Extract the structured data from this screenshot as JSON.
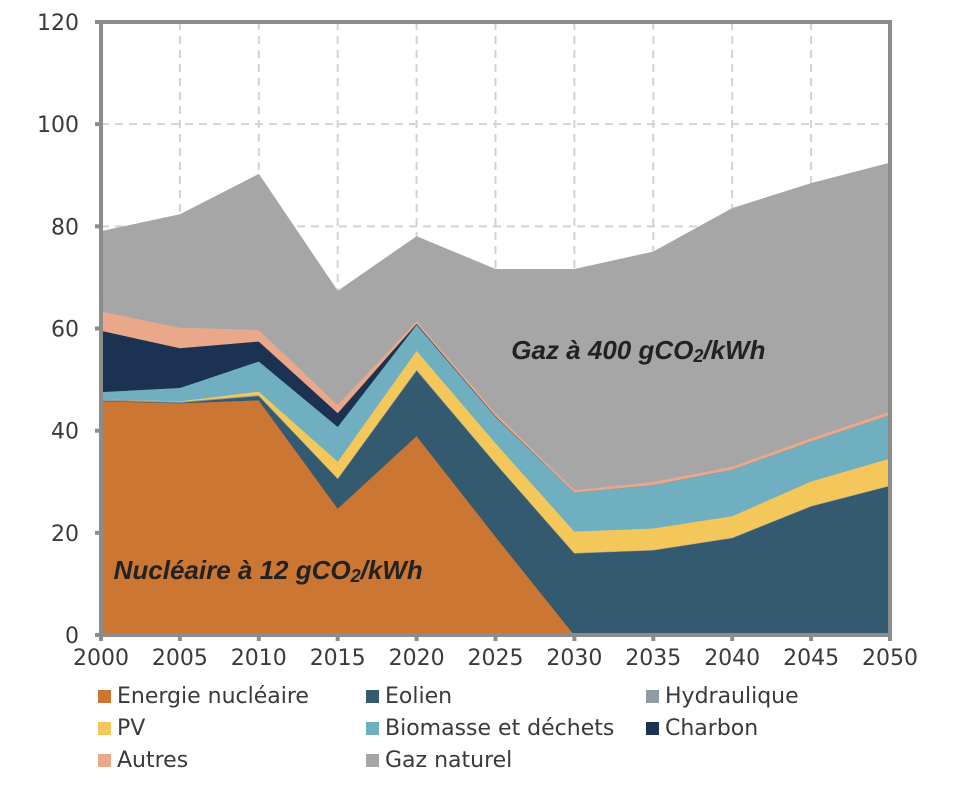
{
  "chart_data": {
    "type": "area",
    "stacked": true,
    "title": "",
    "xlabel": "",
    "ylabel": "",
    "x": [
      2000,
      2005,
      2010,
      2015,
      2020,
      2025,
      2030,
      2035,
      2040,
      2045,
      2050
    ],
    "xlim": [
      2000,
      2050
    ],
    "ylim": [
      0,
      120
    ],
    "x_ticks": [
      "2000",
      "2005",
      "2010",
      "2015",
      "2020",
      "2025",
      "2030",
      "2035",
      "2040",
      "2045",
      "2050"
    ],
    "y_ticks": [
      "0",
      "20",
      "40",
      "60",
      "80",
      "100",
      "120"
    ],
    "y_tick_values": [
      0,
      20,
      40,
      60,
      80,
      100,
      120
    ],
    "grid": true,
    "grid_style": "dashed",
    "legend_position": "bottom",
    "series": [
      {
        "name": "Energie nucléaire",
        "color": "#cc7634",
        "values": [
          45.8,
          45.4,
          46.0,
          24.8,
          39.0,
          19.3,
          0,
          0,
          0,
          0,
          0
        ]
      },
      {
        "name": "Eolien",
        "color": "#335a6e",
        "values": [
          0.1,
          0.1,
          0.8,
          5.8,
          12.8,
          14.3,
          16.0,
          16.6,
          19.0,
          25.2,
          29.2
        ]
      },
      {
        "name": "Hydraulique",
        "color": "#8f9ba6",
        "values": [
          0.3,
          0.2,
          0.2,
          0.1,
          0.2,
          0.1,
          0.1,
          0.1,
          0.1,
          0.1,
          0.1
        ]
      },
      {
        "name": "PV",
        "color": "#f4c75a",
        "values": [
          0,
          0.1,
          0.7,
          3.3,
          3.7,
          3.9,
          4.2,
          4.2,
          4.2,
          4.8,
          5.3
        ]
      },
      {
        "name": "Biomasse et déchets",
        "color": "#6fafc0",
        "values": [
          1.4,
          2.6,
          5.9,
          6.8,
          5.1,
          5.2,
          7.6,
          8.5,
          9.1,
          7.8,
          8.5
        ]
      },
      {
        "name": "Charbon",
        "color": "#1c3252",
        "values": [
          12.0,
          7.8,
          3.9,
          2.7,
          0.2,
          0.1,
          0,
          0,
          0,
          0,
          0
        ]
      },
      {
        "name": "Autres",
        "color": "#e9a88a",
        "values": [
          3.8,
          4.0,
          2.3,
          1.6,
          0.5,
          0.6,
          0.5,
          0.6,
          0.6,
          0.7,
          0.7
        ]
      },
      {
        "name": "Gaz naturel",
        "color": "#a6a6a6",
        "values": [
          15.6,
          22.1,
          30.4,
          22.2,
          16.5,
          28.1,
          43.2,
          45.0,
          50.5,
          49.8,
          48.6
        ]
      }
    ],
    "annotations": [
      {
        "text_main": "Gaz à 400 gCO",
        "text_sub": "2",
        "text_end": "/kWh",
        "x": 2026,
        "y": 54
      },
      {
        "text_main": "Nucléaire à 12 gCO",
        "text_sub": "2",
        "text_end": "/kWh",
        "x": 2000.8,
        "y": 11
      }
    ],
    "legend": [
      {
        "label": "Energie nucléaire",
        "color": "#cc7634",
        "row": 0,
        "col": 0
      },
      {
        "label": "Eolien",
        "color": "#335a6e",
        "row": 0,
        "col": 1
      },
      {
        "label": "Hydraulique",
        "color": "#8f9ba6",
        "row": 0,
        "col": 2
      },
      {
        "label": "PV",
        "color": "#f4c75a",
        "row": 1,
        "col": 0
      },
      {
        "label": "Biomasse et déchets",
        "color": "#6fafc0",
        "row": 1,
        "col": 1
      },
      {
        "label": "Charbon",
        "color": "#1c3252",
        "row": 1,
        "col": 2
      },
      {
        "label": "Autres",
        "color": "#e9a88a",
        "row": 2,
        "col": 0
      },
      {
        "label": "Gaz naturel",
        "color": "#a6a6a6",
        "row": 2,
        "col": 1
      }
    ],
    "colors": {
      "axis": "#8c8c8c",
      "grid": "#d3d3d3"
    }
  }
}
